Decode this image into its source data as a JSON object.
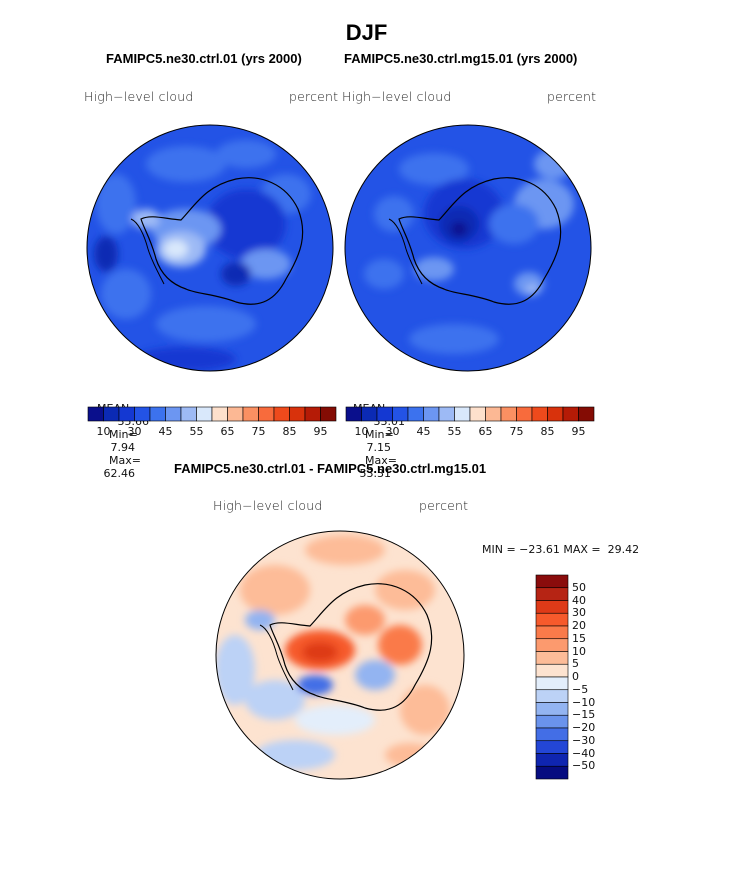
{
  "title": "DJF",
  "panels": [
    {
      "case_title": "FAMIPC5.ne30.ctrl.01 (yrs 2000)",
      "field_label": "High−level cloud",
      "units_label": "percent",
      "stats": {
        "mean_label": "MEAN=",
        "mean": "35.66",
        "min_label": "Min=",
        "min": "7.94",
        "max_label": "Max=",
        "max": "62.46"
      }
    },
    {
      "case_title": "FAMIPC5.ne30.ctrl.mg15.01 (yrs 2000)",
      "field_label": "High−level cloud",
      "units_label": "percent",
      "stats": {
        "mean_label": "MEAN=",
        "mean": "33.01",
        "min_label": "Min=",
        "min": "7.15",
        "max_label": "Max=",
        "max": "53.31"
      }
    }
  ],
  "diff_panel": {
    "case_title": "FAMIPC5.ne30.ctrl.01 - FAMIPC5.ne30.ctrl.mg15.01",
    "field_label": "High−level cloud",
    "units_label": "percent",
    "minmax_text": "MIN = −23.61 MAX =  29.42"
  },
  "chart_data": [
    {
      "type": "heatmap",
      "projection": "south-polar-stereographic",
      "variable": "High−level cloud",
      "units": "percent",
      "case": "FAMIPC5.ne30.ctrl.01 (yrs 2000)",
      "mean": 35.66,
      "min": 7.94,
      "max": 62.46,
      "contour_levels": [
        5,
        10,
        20,
        30,
        40,
        45,
        50,
        55,
        60,
        65,
        70,
        75,
        80,
        85,
        90,
        95
      ],
      "colorbar_tick_labels": [
        "10",
        "30",
        "45",
        "55",
        "65",
        "75",
        "85",
        "95"
      ],
      "colors": [
        "#0a0f8c",
        "#0b2ab4",
        "#1438d2",
        "#2353e6",
        "#3c72ee",
        "#6c96f2",
        "#9dbaf5",
        "#d9e8fb",
        "#fde0cc",
        "#fcb894",
        "#fa9062",
        "#f86b3c",
        "#ee4a1c",
        "#d8320c",
        "#b51b06",
        "#840c04"
      ]
    },
    {
      "type": "heatmap",
      "projection": "south-polar-stereographic",
      "variable": "High−level cloud",
      "units": "percent",
      "case": "FAMIPC5.ne30.ctrl.mg15.01 (yrs 2000)",
      "mean": 33.01,
      "min": 7.15,
      "max": 53.31,
      "contour_levels": [
        5,
        10,
        20,
        30,
        40,
        45,
        50,
        55,
        60,
        65,
        70,
        75,
        80,
        85,
        90,
        95
      ],
      "colorbar_tick_labels": [
        "10",
        "30",
        "45",
        "55",
        "65",
        "75",
        "85",
        "95"
      ],
      "colors": [
        "#0a0f8c",
        "#0b2ab4",
        "#1438d2",
        "#2353e6",
        "#3c72ee",
        "#6c96f2",
        "#9dbaf5",
        "#d9e8fb",
        "#fde0cc",
        "#fcb894",
        "#fa9062",
        "#f86b3c",
        "#ee4a1c",
        "#d8320c",
        "#b51b06",
        "#840c04"
      ]
    },
    {
      "type": "heatmap",
      "projection": "south-polar-stereographic",
      "variable": "High−level cloud",
      "units": "percent",
      "case": "FAMIPC5.ne30.ctrl.01 - FAMIPC5.ne30.ctrl.mg15.01",
      "min": -23.61,
      "max": 29.42,
      "contour_levels": [
        -50,
        -40,
        -30,
        -20,
        -15,
        -10,
        -5,
        0,
        5,
        10,
        15,
        20,
        30,
        40,
        50
      ],
      "colorbar_tick_labels": [
        "50",
        "40",
        "30",
        "20",
        "15",
        "10",
        "5",
        "0",
        "−5",
        "−10",
        "−15",
        "−20",
        "−30",
        "−40",
        "−50"
      ],
      "colors": [
        "#8a0c0c",
        "#b62414",
        "#de3a18",
        "#f65a2c",
        "#fa7a4a",
        "#fc9a6e",
        "#fdbc98",
        "#fde3d0",
        "#e3eefb",
        "#bcd2f6",
        "#93b4f1",
        "#6a93ec",
        "#436ee6",
        "#2346d6",
        "#0f25b0",
        "#060c80"
      ]
    }
  ]
}
